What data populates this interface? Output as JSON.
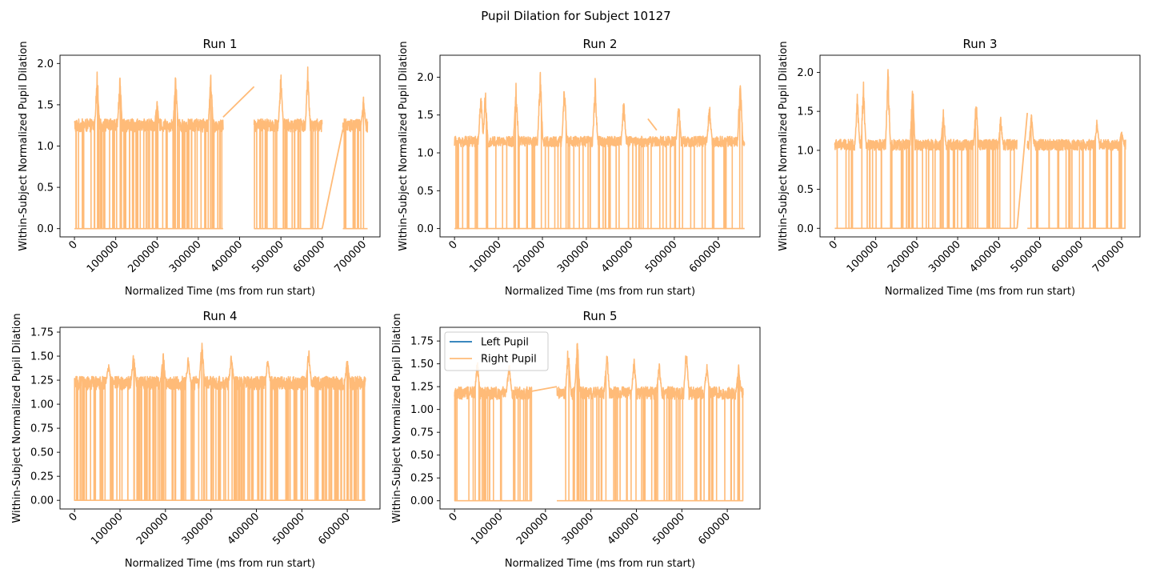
{
  "figure": {
    "suptitle": "Pupil Dilation for Subject 10127"
  },
  "colors": {
    "left": "#1f77b4",
    "right": "#ffbb78"
  },
  "legend": {
    "location": "upper left",
    "subplot": "Run 5",
    "entries": [
      "Left Pupil",
      "Right Pupil"
    ]
  },
  "chart_data": [
    {
      "type": "line",
      "title": "Run 1",
      "xlabel": "Normalized Time (ms from run start)",
      "ylabel": "Within-Subject Normalized Pupil Dilation",
      "xlim": [
        -35000,
        740000
      ],
      "ylim": [
        -0.1,
        2.1
      ],
      "xticks": [
        0,
        100000,
        200000,
        300000,
        400000,
        500000,
        600000,
        700000
      ],
      "yticks": [
        0.0,
        0.5,
        1.0,
        1.5,
        2.0
      ],
      "ytick_labels": [
        "0.0",
        "0.5",
        "1.0",
        "1.5",
        "2.0"
      ],
      "grid": false,
      "series": [
        {
          "name": "Left Pupil",
          "values_note": "",
          "points": []
        },
        {
          "name": "Right Pupil",
          "baseline": 1.25,
          "noise": 0.08,
          "dropout_rate": 0.35,
          "segments": [
            [
              0,
              360000
            ],
            [
              435000,
              600000
            ],
            [
              650000,
              710000
            ]
          ],
          "gap_lines": [
            [
              [
                360000,
                1.35
              ],
              [
                435000,
                1.72
              ]
            ],
            [
              [
                600000,
                0.0
              ],
              [
                650000,
                1.2
              ]
            ]
          ],
          "peaks": [
            [
              55000,
              1.93
            ],
            [
              110000,
              1.88
            ],
            [
              200000,
              1.57
            ],
            [
              245000,
              1.98
            ],
            [
              330000,
              1.95
            ],
            [
              500000,
              1.95
            ],
            [
              565000,
              1.97
            ],
            [
              700000,
              1.6
            ]
          ]
        }
      ]
    },
    {
      "type": "line",
      "title": "Run 2",
      "xlabel": "Normalized Time (ms from run start)",
      "ylabel": "Within-Subject Normalized Pupil Dilation",
      "xlim": [
        -33000,
        695000
      ],
      "ylim": [
        -0.11,
        2.29
      ],
      "xticks": [
        0,
        100000,
        200000,
        300000,
        400000,
        500000,
        600000
      ],
      "yticks": [
        0.0,
        0.5,
        1.0,
        1.5,
        2.0
      ],
      "ytick_labels": [
        "0.0",
        "0.5",
        "1.0",
        "1.5",
        "2.0"
      ],
      "grid": false,
      "series": [
        {
          "name": "Left Pupil",
          "points": []
        },
        {
          "name": "Right Pupil",
          "baseline": 1.15,
          "noise": 0.07,
          "dropout_rate": 0.25,
          "segments": [
            [
              0,
              660000
            ]
          ],
          "gap_lines": [
            [
              [
                440000,
                1.45
              ],
              [
                460000,
                1.3
              ]
            ]
          ],
          "peaks": [
            [
              60000,
              1.85
            ],
            [
              70000,
              1.88
            ],
            [
              140000,
              1.96
            ],
            [
              195000,
              2.17
            ],
            [
              250000,
              1.98
            ],
            [
              320000,
              2.0
            ],
            [
              385000,
              1.75
            ],
            [
              510000,
              1.73
            ],
            [
              580000,
              1.7
            ],
            [
              650000,
              2.12
            ]
          ]
        }
      ]
    },
    {
      "type": "line",
      "title": "Run 3",
      "xlabel": "Normalized Time (ms from run start)",
      "ylabel": "Within-Subject Normalized Pupil Dilation",
      "xlim": [
        -36000,
        745000
      ],
      "ylim": [
        -0.11,
        2.22
      ],
      "xticks": [
        0,
        100000,
        200000,
        300000,
        400000,
        500000,
        600000,
        700000
      ],
      "yticks": [
        0.0,
        0.5,
        1.0,
        1.5,
        2.0
      ],
      "ytick_labels": [
        "0.0",
        "0.5",
        "1.0",
        "1.5",
        "2.0"
      ],
      "grid": false,
      "series": [
        {
          "name": "Left Pupil",
          "points": []
        },
        {
          "name": "Right Pupil",
          "baseline": 1.07,
          "noise": 0.07,
          "dropout_rate": 0.22,
          "segments": [
            [
              0,
              445000
            ],
            [
              470000,
              710000
            ]
          ],
          "gap_lines": [
            [
              [
                445000,
                0.0
              ],
              [
                470000,
                1.48
              ]
            ]
          ],
          "peaks": [
            [
              55000,
              1.75
            ],
            [
              70000,
              1.93
            ],
            [
              130000,
              2.11
            ],
            [
              190000,
              1.95
            ],
            [
              265000,
              1.58
            ],
            [
              345000,
              1.72
            ],
            [
              405000,
              1.45
            ],
            [
              480000,
              1.5
            ],
            [
              640000,
              1.42
            ],
            [
              700000,
              1.27
            ]
          ]
        }
      ]
    },
    {
      "type": "line",
      "title": "Run 4",
      "xlabel": "Normalized Time (ms from run start)",
      "ylabel": "Within-Subject Normalized Pupil Dilation",
      "xlim": [
        -32000,
        672000
      ],
      "ylim": [
        -0.09,
        1.8
      ],
      "xticks": [
        0,
        100000,
        200000,
        300000,
        400000,
        500000,
        600000
      ],
      "yticks": [
        0.0,
        0.25,
        0.5,
        0.75,
        1.0,
        1.25,
        1.5,
        1.75
      ],
      "ytick_labels": [
        "0.00",
        "0.25",
        "0.50",
        "0.75",
        "1.00",
        "1.25",
        "1.50",
        "1.75"
      ],
      "grid": false,
      "series": [
        {
          "name": "Left Pupil",
          "points": []
        },
        {
          "name": "Right Pupil",
          "baseline": 1.22,
          "noise": 0.07,
          "dropout_rate": 0.45,
          "segments": [
            [
              0,
              640000
            ]
          ],
          "gap_lines": [],
          "peaks": [
            [
              75000,
              1.45
            ],
            [
              130000,
              1.57
            ],
            [
              195000,
              1.55
            ],
            [
              250000,
              1.5
            ],
            [
              280000,
              1.72
            ],
            [
              345000,
              1.55
            ],
            [
              425000,
              1.5
            ],
            [
              515000,
              1.6
            ],
            [
              600000,
              1.5
            ]
          ]
        }
      ]
    },
    {
      "type": "line",
      "title": "Run 5",
      "xlabel": "Normalized Time (ms from run start)",
      "ylabel": "Within-Subject Normalized Pupil Dilation",
      "xlim": [
        -32000,
        672000
      ],
      "ylim": [
        -0.09,
        1.9
      ],
      "xticks": [
        0,
        100000,
        200000,
        300000,
        400000,
        500000,
        600000
      ],
      "yticks": [
        0.0,
        0.25,
        0.5,
        0.75,
        1.0,
        1.25,
        1.5,
        1.75
      ],
      "ytick_labels": [
        "0.00",
        "0.25",
        "0.50",
        "0.75",
        "1.00",
        "1.25",
        "1.50",
        "1.75"
      ],
      "grid": false,
      "series": [
        {
          "name": "Left Pupil",
          "points": []
        },
        {
          "name": "Right Pupil",
          "baseline": 1.18,
          "noise": 0.07,
          "dropout_rate": 0.3,
          "segments": [
            [
              0,
              170000
            ],
            [
              225000,
              635000
            ]
          ],
          "gap_lines": [
            [
              [
                170000,
                1.2
              ],
              [
                225000,
                1.25
              ]
            ]
          ],
          "peaks": [
            [
              50000,
              1.58
            ],
            [
              120000,
              1.55
            ],
            [
              250000,
              1.75
            ],
            [
              270000,
              1.8
            ],
            [
              335000,
              1.7
            ],
            [
              395000,
              1.6
            ],
            [
              450000,
              1.55
            ],
            [
              510000,
              1.73
            ],
            [
              555000,
              1.55
            ],
            [
              625000,
              1.5
            ]
          ]
        }
      ]
    }
  ]
}
